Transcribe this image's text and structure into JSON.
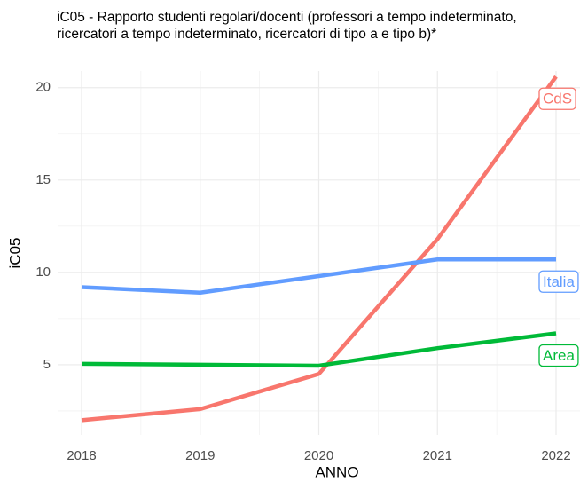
{
  "chart_data": {
    "type": "line",
    "title": "iC05 - Rapporto studenti regolari/docenti (professori a tempo indeterminato, ricercatori a tempo indeterminato, ricercatori di tipo a e tipo b)*",
    "x_label": "ANNO",
    "y_label": "iC05",
    "x": [
      2018,
      2019,
      2020,
      2021,
      2022
    ],
    "xlim": [
      2018,
      2022
    ],
    "xticks": [
      2018,
      2019,
      2020,
      2021,
      2022
    ],
    "ylim": [
      1.2,
      20.9
    ],
    "yticks": [
      5,
      10,
      15,
      20
    ],
    "grid": true,
    "series": [
      {
        "name": "CdS",
        "color": "#f8766d",
        "values": [
          2.0,
          2.6,
          4.5,
          11.8,
          20.6
        ]
      },
      {
        "name": "Italia",
        "color": "#619cff",
        "values": [
          9.2,
          8.9,
          9.8,
          10.7,
          10.7
        ]
      },
      {
        "name": "Area",
        "color": "#00ba38",
        "values": [
          5.05,
          5.0,
          4.95,
          5.9,
          6.7
        ]
      }
    ]
  }
}
